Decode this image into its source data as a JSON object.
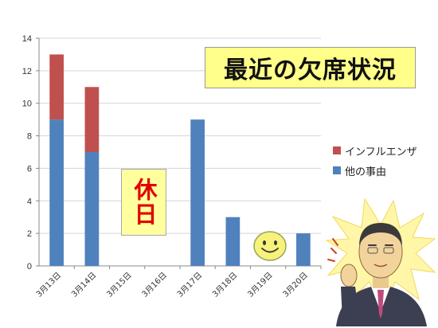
{
  "chart_data": {
    "type": "bar",
    "stacked": true,
    "title": "最近の欠席状況",
    "categories": [
      "3月13日",
      "3月14日",
      "3月15日",
      "3月16日",
      "3月17日",
      "3月18日",
      "3月19日",
      "3月20日"
    ],
    "series": [
      {
        "name": "他の事由",
        "color": "#4f81bd",
        "values": [
          9,
          7,
          0,
          0,
          9,
          3,
          0,
          2
        ]
      },
      {
        "name": "インフルエンザ",
        "color": "#c0504d",
        "values": [
          4,
          4,
          0,
          0,
          0,
          0,
          0,
          0
        ]
      }
    ],
    "ylim": [
      0,
      14
    ],
    "yticks": [
      0,
      2,
      4,
      6,
      8,
      10,
      12,
      14
    ],
    "grid": true,
    "legend_position": "right"
  },
  "annotations": {
    "holiday_label": "休日"
  },
  "decorations": {
    "smiley_icon": "smiley-face",
    "person_illustration": "man-in-suit-waving"
  }
}
